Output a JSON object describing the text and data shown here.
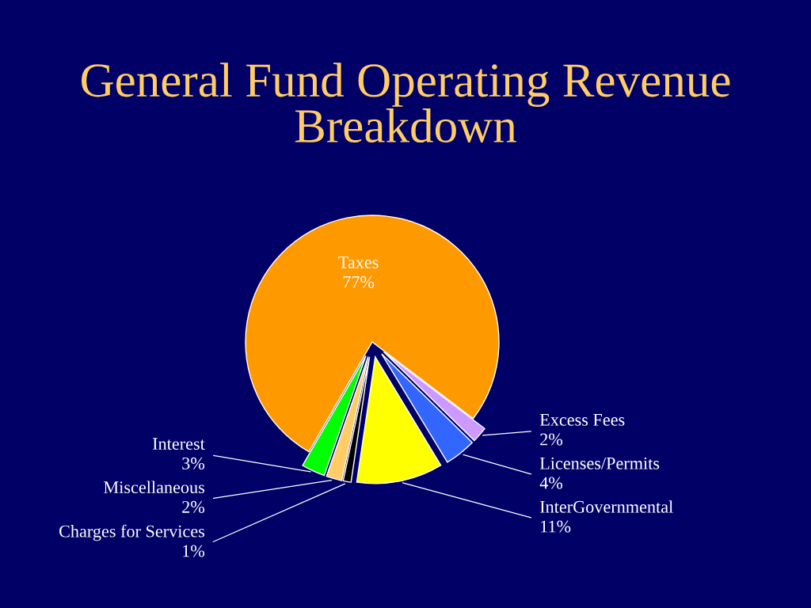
{
  "chart_data": {
    "type": "pie",
    "title": "General Fund Operating Revenue\nBreakdown",
    "categories": [
      "Taxes",
      "Excess Fees",
      "Licenses/Permits",
      "InterGovernmental",
      "Charges for Services",
      "Miscellaneous",
      "Interest"
    ],
    "values": [
      77,
      2,
      4,
      11,
      1,
      2,
      3
    ],
    "value_labels": [
      "77%",
      "2%",
      "4%",
      "11%",
      "1%",
      "2%",
      "3%"
    ],
    "colors": [
      "#ff9900",
      "#cc99ff",
      "#3366ff",
      "#ffff00",
      "#000000",
      "#ffcc66",
      "#00ff00"
    ]
  }
}
